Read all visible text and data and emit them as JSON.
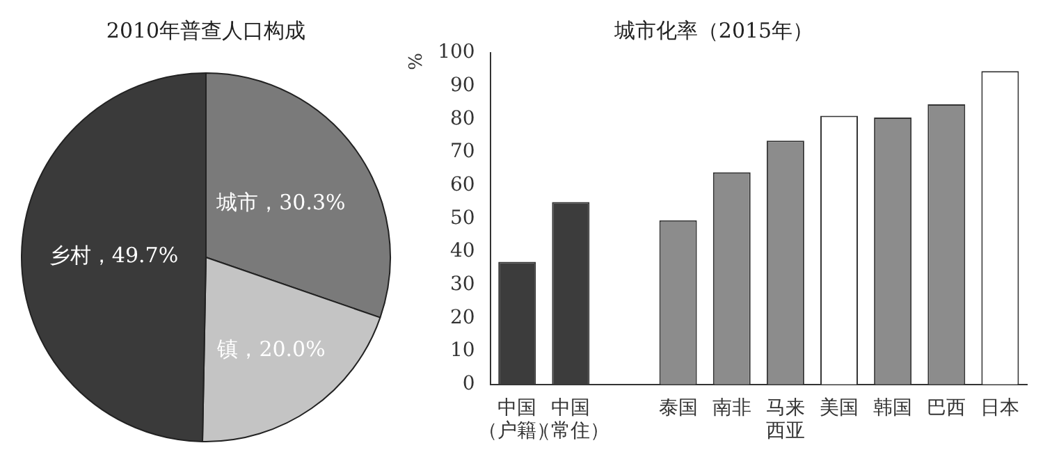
{
  "chart_data": [
    {
      "type": "pie",
      "title": "2010年普查人口构成",
      "categories": [
        "城市",
        "镇",
        "乡村"
      ],
      "values": [
        30.3,
        20.0,
        49.7
      ],
      "colors": [
        "#7a7a7a",
        "#c4c4c4",
        "#3a3a3a"
      ],
      "value_labels": [
        "，30.3%",
        "，20.0%",
        "，49.7%"
      ]
    },
    {
      "type": "bar",
      "title": "城市化率（2015年）",
      "ylabel": "%",
      "categories": [
        "中国（户籍）",
        "中国（常住）",
        null,
        "泰国",
        "南非",
        "马来西亚",
        "美国",
        "韩国",
        "巴西",
        "日本"
      ],
      "values": [
        37,
        55,
        null,
        49.5,
        64,
        73.5,
        81,
        80.5,
        84.5,
        94.5
      ],
      "colors": [
        "#3c3c3c",
        "#3c3c3c",
        null,
        "#8c8c8c",
        "#8c8c8c",
        "#8c8c8c",
        "#ffffff",
        "#8c8c8c",
        "#8c8c8c",
        "#ffffff"
      ],
      "ylim": [
        0,
        100
      ],
      "yticks": [
        0,
        10,
        20,
        30,
        40,
        50,
        60,
        70,
        80,
        90,
        100
      ],
      "grid": false,
      "legend": false
    }
  ]
}
